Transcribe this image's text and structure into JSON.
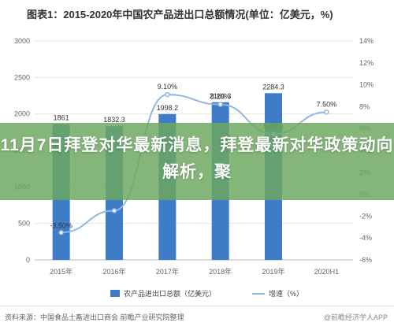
{
  "chart_data": {
    "type": "bar",
    "title": "图表1：2015-2020年中国农产品进出口总额情况(单位：亿美元，%)",
    "categories": [
      "2015年",
      "2016年",
      "2017年",
      "2018年",
      "2019年",
      "2020H1"
    ],
    "series": [
      {
        "name": "农产品进出口总额（亿美元）",
        "type": "bar",
        "axis": "left",
        "values": [
          1861,
          1832.3,
          1998.2,
          2160.3,
          2284.3,
          null
        ],
        "labels": [
          "1861",
          "1832.3",
          "1998.2",
          "2160.3",
          "2284.3",
          ""
        ]
      },
      {
        "name": "增速（%）",
        "type": "line",
        "axis": "right",
        "values": [
          -3.5,
          -1.5,
          9.1,
          8.2,
          5.5,
          7.5
        ],
        "labels": [
          "-3.50%",
          "",
          "9.10%",
          "8.20%",
          "5.50%",
          "7.50%"
        ]
      }
    ],
    "ylim_left": [
      0,
      3000
    ],
    "yticks_left": [
      "0",
      "500",
      "1000",
      "1500",
      "2000",
      "2500",
      "3000"
    ],
    "ylim_right": [
      -6,
      14
    ],
    "yticks_right": [
      "-6%",
      "-4%",
      "-2%",
      "0%",
      "2%",
      "4%",
      "6%",
      "8%",
      "10%",
      "12%",
      "14%"
    ],
    "grid": true,
    "legend": "bottom",
    "colors": {
      "bar": "#3e7cc8",
      "line": "#8fb7e4"
    }
  },
  "source_text": "资料来源：中国食品土畜进出口商会 前瞻产业研究院整理",
  "logo_text": "@前瞻经济学人APP",
  "banner_title": "11月7日拜登对华最新消息，拜登最新对华政策动向解析，聚"
}
